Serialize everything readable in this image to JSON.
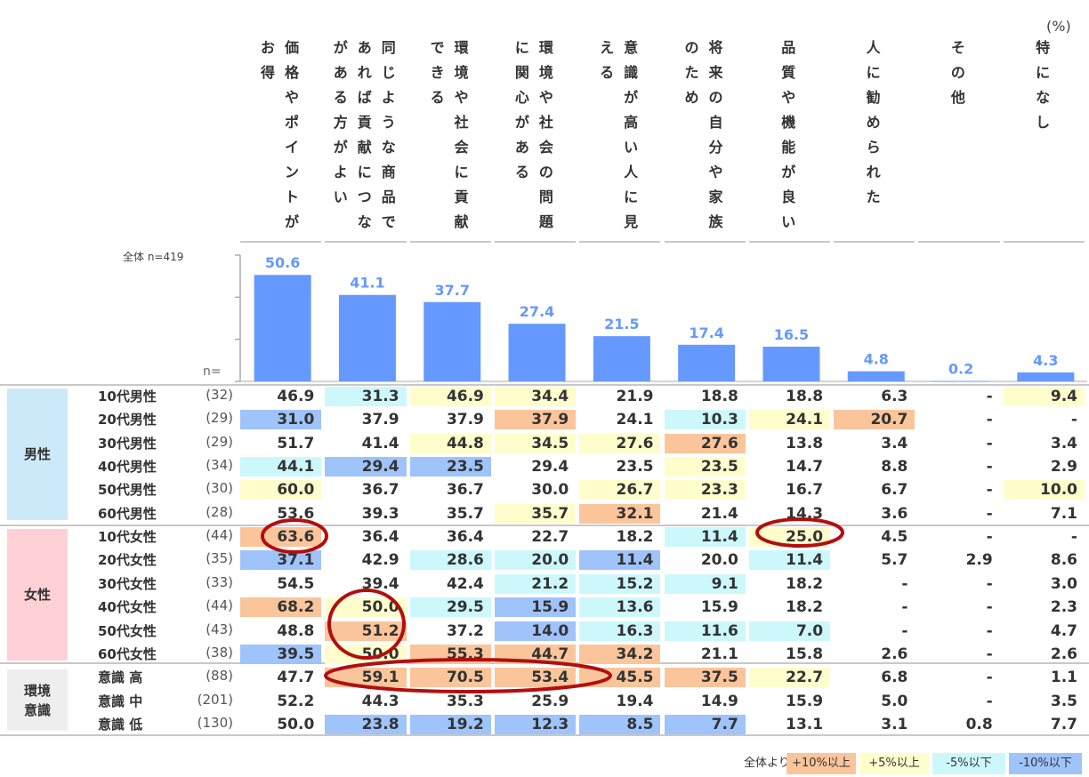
{
  "unit": "(%)",
  "overall_label": "全体 n=419",
  "n_label": "n=",
  "headers": [
    "お得|価格やポイントが",
    "がある方がよい|あれば貢献につな|同じような商品で",
    "できる|環境や社会に貢献",
    "に関心がある|環境や社会の問題",
    "える|意識が高い人に見",
    "のため|将来の自分や家族",
    "品質や機能が良い",
    "人に勧められた",
    "その他",
    "特になし"
  ],
  "chart_data": {
    "type": "bar",
    "categories": [
      "価格やポイントがお得",
      "同じような商品であれば貢献につながる方がよい",
      "環境や社会に貢献できる",
      "環境や社会の問題に関心がある",
      "意識が高い人に見える",
      "将来の自分や家族のため",
      "品質や機能が良い",
      "人に勧められた",
      "その他",
      "特になし"
    ],
    "values": [
      50.6,
      41.1,
      37.7,
      27.4,
      21.5,
      17.4,
      16.5,
      4.8,
      0.2,
      4.3
    ],
    "labels": [
      "50.6",
      "41.1",
      "37.7",
      "27.4",
      "21.5",
      "17.4",
      "16.5",
      "4.8",
      "0.2",
      "4.3"
    ],
    "ylim": [
      0,
      60
    ],
    "bar_color": "#6699ff",
    "label_color": "#6699ff"
  },
  "groups": [
    {
      "label": "男性",
      "color": "#cce9f9"
    },
    {
      "label": "女性",
      "color": "#ffd0d5"
    },
    {
      "label": "環境\n意識",
      "color": "#eeeeee"
    }
  ],
  "rows": [
    {
      "label": "10代男性",
      "n": "(32)",
      "values": [
        "46.9",
        "31.3",
        "46.9",
        "34.4",
        "21.9",
        "18.8",
        "18.8",
        "6.3",
        "-",
        "9.4"
      ],
      "hl": [
        "",
        "c",
        "y",
        "y",
        "",
        "",
        "",
        "",
        "",
        "y"
      ]
    },
    {
      "label": "20代男性",
      "n": "(29)",
      "values": [
        "31.0",
        "37.9",
        "37.9",
        "37.9",
        "24.1",
        "10.3",
        "24.1",
        "20.7",
        "-",
        "-"
      ],
      "hl": [
        "b",
        "",
        "",
        "o",
        "",
        "c",
        "y",
        "o",
        "",
        ""
      ]
    },
    {
      "label": "30代男性",
      "n": "(29)",
      "values": [
        "51.7",
        "41.4",
        "44.8",
        "34.5",
        "27.6",
        "27.6",
        "13.8",
        "3.4",
        "-",
        "3.4"
      ],
      "hl": [
        "",
        "",
        "y",
        "y",
        "y",
        "o",
        "",
        "",
        "",
        ""
      ]
    },
    {
      "label": "40代男性",
      "n": "(34)",
      "values": [
        "44.1",
        "29.4",
        "23.5",
        "29.4",
        "23.5",
        "23.5",
        "14.7",
        "8.8",
        "-",
        "2.9"
      ],
      "hl": [
        "c",
        "b",
        "b",
        "",
        "",
        "y",
        "",
        "",
        "",
        ""
      ]
    },
    {
      "label": "50代男性",
      "n": "(30)",
      "values": [
        "60.0",
        "36.7",
        "36.7",
        "30.0",
        "26.7",
        "23.3",
        "16.7",
        "6.7",
        "-",
        "10.0"
      ],
      "hl": [
        "y",
        "",
        "",
        "",
        "y",
        "y",
        "",
        "",
        "",
        "y"
      ]
    },
    {
      "label": "60代男性",
      "n": "(28)",
      "values": [
        "53.6",
        "39.3",
        "35.7",
        "35.7",
        "32.1",
        "21.4",
        "14.3",
        "3.6",
        "-",
        "7.1"
      ],
      "hl": [
        "",
        "",
        "",
        "y",
        "o",
        "",
        "",
        "",
        "",
        ""
      ]
    },
    {
      "label": "10代女性",
      "n": "(44)",
      "values": [
        "63.6",
        "36.4",
        "36.4",
        "22.7",
        "18.2",
        "11.4",
        "25.0",
        "4.5",
        "-",
        "-"
      ],
      "hl": [
        "o",
        "",
        "",
        "",
        "",
        "c",
        "y",
        "",
        "",
        ""
      ]
    },
    {
      "label": "20代女性",
      "n": "(35)",
      "values": [
        "37.1",
        "42.9",
        "28.6",
        "20.0",
        "11.4",
        "20.0",
        "11.4",
        "5.7",
        "2.9",
        "8.6"
      ],
      "hl": [
        "b",
        "",
        "c",
        "c",
        "b",
        "",
        "c",
        "",
        "",
        ""
      ]
    },
    {
      "label": "30代女性",
      "n": "(33)",
      "values": [
        "54.5",
        "39.4",
        "42.4",
        "21.2",
        "15.2",
        "9.1",
        "18.2",
        "-",
        "-",
        "3.0"
      ],
      "hl": [
        "",
        "",
        "",
        "c",
        "c",
        "c",
        "",
        "",
        "",
        ""
      ]
    },
    {
      "label": "40代女性",
      "n": "(44)",
      "values": [
        "68.2",
        "50.0",
        "29.5",
        "15.9",
        "13.6",
        "15.9",
        "18.2",
        "-",
        "-",
        "2.3"
      ],
      "hl": [
        "o",
        "y",
        "c",
        "b",
        "c",
        "",
        "",
        "",
        "",
        ""
      ]
    },
    {
      "label": "50代女性",
      "n": "(43)",
      "values": [
        "48.8",
        "51.2",
        "37.2",
        "14.0",
        "16.3",
        "11.6",
        "7.0",
        "-",
        "-",
        "4.7"
      ],
      "hl": [
        "",
        "o",
        "",
        "b",
        "c",
        "c",
        "c",
        "",
        "",
        ""
      ]
    },
    {
      "label": "60代女性",
      "n": "(38)",
      "values": [
        "39.5",
        "50.0",
        "55.3",
        "44.7",
        "34.2",
        "21.1",
        "15.8",
        "2.6",
        "-",
        "2.6"
      ],
      "hl": [
        "b",
        "y",
        "o",
        "o",
        "o",
        "",
        "",
        "",
        "",
        ""
      ]
    },
    {
      "label": "意識 高",
      "n": "(88)",
      "values": [
        "47.7",
        "59.1",
        "70.5",
        "53.4",
        "45.5",
        "37.5",
        "22.7",
        "6.8",
        "-",
        "1.1"
      ],
      "hl": [
        "",
        "o",
        "o",
        "o",
        "o",
        "o",
        "y",
        "",
        "",
        ""
      ]
    },
    {
      "label": "意識 中",
      "n": "(201)",
      "values": [
        "52.2",
        "44.3",
        "35.3",
        "25.9",
        "19.4",
        "14.9",
        "15.9",
        "5.0",
        "-",
        "3.5"
      ],
      "hl": [
        "",
        "",
        "",
        "",
        "",
        "",
        "",
        "",
        "",
        ""
      ]
    },
    {
      "label": "意識 低",
      "n": "(130)",
      "values": [
        "50.0",
        "23.8",
        "19.2",
        "12.3",
        "8.5",
        "7.7",
        "13.1",
        "3.1",
        "0.8",
        "7.7"
      ],
      "hl": [
        "",
        "b",
        "b",
        "b",
        "b",
        "b",
        "",
        "",
        "",
        ""
      ]
    }
  ],
  "highlight_colors": {
    "o": "#fbc59b",
    "y": "#fffdcc",
    "c": "#ccf8fc",
    "b": "#9fc3fb"
  },
  "legend": {
    "prefix": "全体より",
    "items": [
      {
        "label": "+10%以上",
        "color": "#fbc59b"
      },
      {
        "label": "+5%以上",
        "color": "#fffdcc"
      },
      {
        "label": "-5%以下",
        "color": "#ccf8fc"
      },
      {
        "label": "-10%以下",
        "color": "#9fc3fb"
      }
    ]
  }
}
